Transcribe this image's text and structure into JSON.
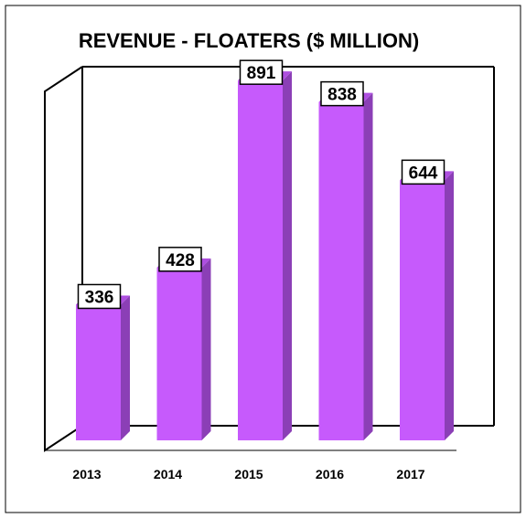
{
  "chart_data": {
    "type": "bar",
    "title": "REVENUE - FLOATERS ($ MILLION)",
    "xlabel": "",
    "ylabel": "",
    "categories": [
      "2013",
      "2014",
      "2015",
      "2016",
      "2017"
    ],
    "values": [
      336,
      428,
      891,
      838,
      644
    ],
    "data_labels": [
      "336",
      "428",
      "891",
      "838",
      "644"
    ],
    "ylim": [
      0,
      1000
    ],
    "grid": false,
    "legend": "none",
    "style": "3d",
    "colors": {
      "bar_front": "#C65AFC",
      "bar_side": "#8B3FB6",
      "bar_top": "#AE4FE0",
      "wall": "#000000",
      "label_box": "#ffffff",
      "text": "#000000",
      "border": "#000000"
    }
  }
}
